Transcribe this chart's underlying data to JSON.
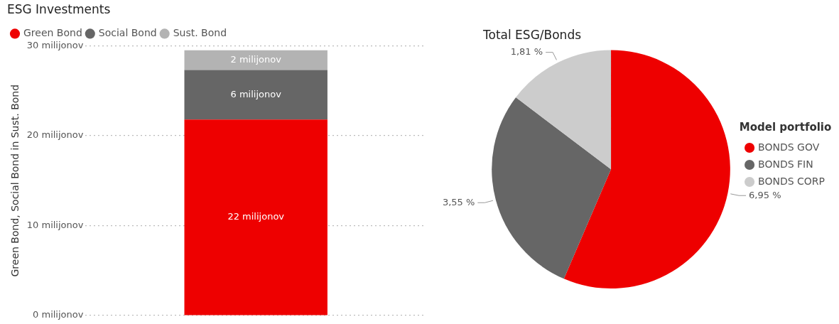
{
  "chart_data": [
    {
      "type": "bar",
      "title": "ESG Investments",
      "ylabel": "Green Bond, Social Bond in Sust. Bond",
      "categories": [
        null
      ],
      "stacked": true,
      "series": [
        {
          "name": "Green Bond",
          "color": "#ee0000",
          "values": [
            21.8
          ],
          "value_labels": [
            "22 milijonov"
          ]
        },
        {
          "name": "Social Bond",
          "color": "#666666",
          "values": [
            5.5
          ],
          "value_labels": [
            "6 milijonov"
          ]
        },
        {
          "name": "Sust. Bond",
          "color": "#b3b3b3",
          "values": [
            2.2
          ],
          "value_labels": [
            "2 milijonov"
          ]
        }
      ],
      "ylim": [
        0,
        30
      ],
      "yticks": [
        {
          "value": 0,
          "label": "0 milijonov"
        },
        {
          "value": 10,
          "label": "10 milijonov"
        },
        {
          "value": 20,
          "label": "20 milijonov"
        },
        {
          "value": 30,
          "label": "30 milijonov"
        }
      ],
      "grid": "y",
      "legend": "top left"
    },
    {
      "type": "pie",
      "title": "Total ESG/Bonds",
      "legend_title": "Model portfolio",
      "categories": [
        "BONDS GOV",
        "BONDS FIN",
        "BONDS CORP"
      ],
      "values": [
        6.95,
        3.55,
        1.81
      ],
      "value_labels": [
        "6,95 %",
        "3,55 %",
        "1,81 %"
      ],
      "colors": [
        "#ee0000",
        "#666666",
        "#cccccc"
      ],
      "legend": "right"
    }
  ]
}
